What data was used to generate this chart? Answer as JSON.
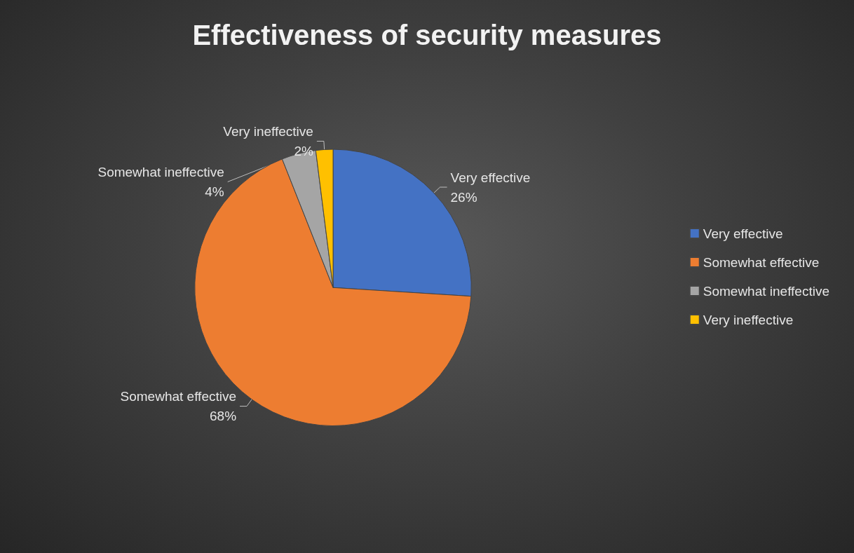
{
  "chart_data": {
    "type": "pie",
    "title": "Effectiveness of security measures",
    "categories": [
      "Very effective",
      "Somewhat effective",
      "Somewhat ineffective",
      "Very ineffective"
    ],
    "values": [
      26,
      68,
      4,
      2
    ],
    "colors": [
      "#4472c4",
      "#ed7d31",
      "#a5a5a5",
      "#ffc000"
    ],
    "value_labels": [
      "26%",
      "68%",
      "4%",
      "2%"
    ],
    "legend": "right"
  }
}
